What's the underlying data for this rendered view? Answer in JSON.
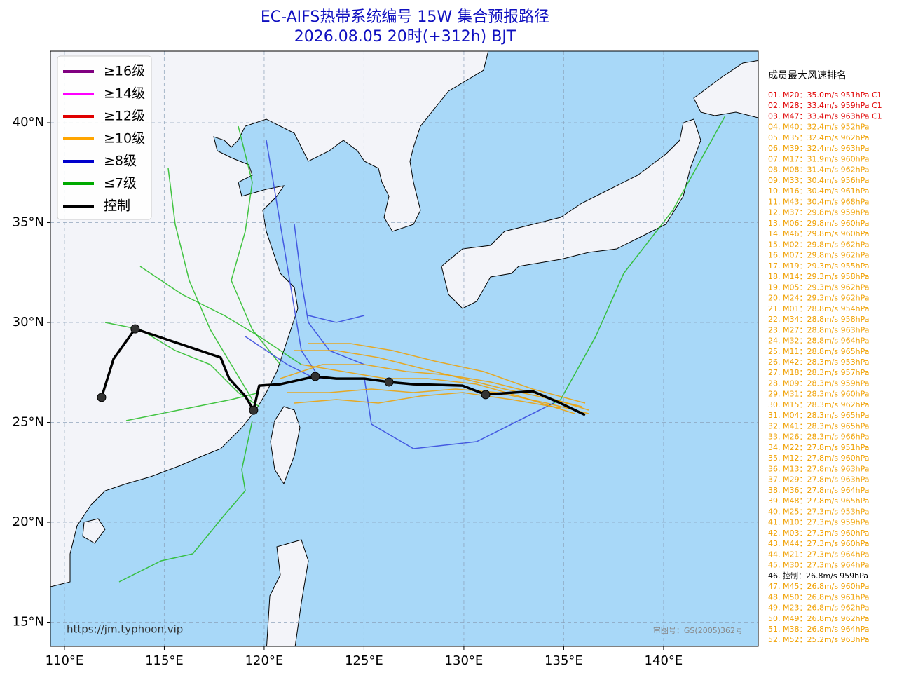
{
  "header": {
    "title": "EC-AIFS热带系统编号 15W 集合预报路径",
    "subtitle": "2026.08.05 20时(+312h) BJT"
  },
  "map": {
    "lon_range": [
      109.3,
      144.74
    ],
    "lat_range": [
      13.79,
      43.58
    ],
    "grid": true,
    "lon_ticks": [
      {
        "value": 110,
        "label": "110°E"
      },
      {
        "value": 115,
        "label": "115°E"
      },
      {
        "value": 120,
        "label": "120°E"
      },
      {
        "value": 125,
        "label": "125°E"
      },
      {
        "value": 130,
        "label": "130°E"
      },
      {
        "value": 135,
        "label": "135°E"
      },
      {
        "value": 140,
        "label": "140°E"
      }
    ],
    "lat_ticks": [
      {
        "value": 15,
        "label": "15°N"
      },
      {
        "value": 20,
        "label": "20°N"
      },
      {
        "value": 25,
        "label": "25°N"
      },
      {
        "value": 30,
        "label": "30°N"
      },
      {
        "value": 35,
        "label": "35°N"
      },
      {
        "value": 40,
        "label": "40°N"
      }
    ],
    "control_track": {
      "lon": [
        111.86,
        112.46,
        113.54,
        117.82,
        118.25,
        119.05,
        119.47,
        119.75,
        120.81,
        122.56,
        123.61,
        125.02,
        126.25,
        127.47,
        129.93,
        131.09,
        133.44,
        134.84,
        136.07
      ],
      "lat": [
        26.25,
        28.18,
        29.68,
        28.25,
        27.19,
        26.32,
        25.61,
        26.84,
        26.91,
        27.3,
        27.19,
        27.19,
        27.02,
        26.91,
        26.84,
        26.39,
        26.56,
        25.96,
        25.37
      ],
      "color": "#000000"
    },
    "source": "https://jm.typhoon.vip",
    "approval": "审图号：GS(2005)362号"
  },
  "legend": [
    {
      "label": "≥16级",
      "color": "#800080"
    },
    {
      "label": "≥14级",
      "color": "#ff00ff"
    },
    {
      "label": "≥12级",
      "color": "#e00000"
    },
    {
      "label": "≥10级",
      "color": "#ffa500"
    },
    {
      "label": "≥8级",
      "color": "#0000cc"
    },
    {
      "label": "≤7级",
      "color": "#00aa00"
    },
    {
      "label": "控制",
      "color": "#000000"
    }
  ],
  "ranking": {
    "title": "成员最大风速排名",
    "items": [
      {
        "text": "01. M20：35.0m/s 951hPa C1",
        "color": "#e00000"
      },
      {
        "text": "02. M28：33.4m/s 959hPa C1",
        "color": "#e00000"
      },
      {
        "text": "03. M47：33.4m/s 963hPa C1",
        "color": "#e00000"
      },
      {
        "text": "04. M40：32.4m/s 952hPa",
        "color": "#f0a000"
      },
      {
        "text": "05. M35：32.4m/s 962hPa",
        "color": "#f0a000"
      },
      {
        "text": "06. M39：32.4m/s 963hPa",
        "color": "#f0a000"
      },
      {
        "text": "07. M17：31.9m/s 960hPa",
        "color": "#f0a000"
      },
      {
        "text": "08. M08：31.4m/s 962hPa",
        "color": "#f0a000"
      },
      {
        "text": "09. M33：30.4m/s 956hPa",
        "color": "#f0a000"
      },
      {
        "text": "10. M16：30.4m/s 961hPa",
        "color": "#f0a000"
      },
      {
        "text": "11. M43：30.4m/s 968hPa",
        "color": "#f0a000"
      },
      {
        "text": "12. M37：29.8m/s 959hPa",
        "color": "#f0a000"
      },
      {
        "text": "13. M06：29.8m/s 960hPa",
        "color": "#f0a000"
      },
      {
        "text": "14. M46：29.8m/s 960hPa",
        "color": "#f0a000"
      },
      {
        "text": "15. M02：29.8m/s 962hPa",
        "color": "#f0a000"
      },
      {
        "text": "16. M07：29.8m/s 962hPa",
        "color": "#f0a000"
      },
      {
        "text": "17. M19：29.3m/s 955hPa",
        "color": "#f0a000"
      },
      {
        "text": "18. M14：29.3m/s 958hPa",
        "color": "#f0a000"
      },
      {
        "text": "19. M05：29.3m/s 962hPa",
        "color": "#f0a000"
      },
      {
        "text": "20. M24：29.3m/s 962hPa",
        "color": "#f0a000"
      },
      {
        "text": "21. M01：28.8m/s 954hPa",
        "color": "#f0a000"
      },
      {
        "text": "22. M34：28.8m/s 958hPa",
        "color": "#f0a000"
      },
      {
        "text": "23. M27：28.8m/s 963hPa",
        "color": "#f0a000"
      },
      {
        "text": "24. M32：28.8m/s 964hPa",
        "color": "#f0a000"
      },
      {
        "text": "25. M11：28.8m/s 965hPa",
        "color": "#f0a000"
      },
      {
        "text": "26. M42：28.3m/s 953hPa",
        "color": "#f0a000"
      },
      {
        "text": "27. M18：28.3m/s 957hPa",
        "color": "#f0a000"
      },
      {
        "text": "28. M09：28.3m/s 959hPa",
        "color": "#f0a000"
      },
      {
        "text": "29. M31：28.3m/s 960hPa",
        "color": "#f0a000"
      },
      {
        "text": "30. M15：28.3m/s 962hPa",
        "color": "#f0a000"
      },
      {
        "text": "31. M04：28.3m/s 965hPa",
        "color": "#f0a000"
      },
      {
        "text": "32. M41：28.3m/s 965hPa",
        "color": "#f0a000"
      },
      {
        "text": "33. M26：28.3m/s 966hPa",
        "color": "#f0a000"
      },
      {
        "text": "34. M22：27.8m/s 951hPa",
        "color": "#f0a000"
      },
      {
        "text": "35. M12：27.8m/s 960hPa",
        "color": "#f0a000"
      },
      {
        "text": "36. M13：27.8m/s 963hPa",
        "color": "#f0a000"
      },
      {
        "text": "37. M29：27.8m/s 963hPa",
        "color": "#f0a000"
      },
      {
        "text": "38. M36：27.8m/s 964hPa",
        "color": "#f0a000"
      },
      {
        "text": "39. M48：27.8m/s 965hPa",
        "color": "#f0a000"
      },
      {
        "text": "40. M25：27.3m/s 953hPa",
        "color": "#f0a000"
      },
      {
        "text": "41. M10：27.3m/s 959hPa",
        "color": "#f0a000"
      },
      {
        "text": "42. M03：27.3m/s 960hPa",
        "color": "#f0a000"
      },
      {
        "text": "43. M44：27.3m/s 960hPa",
        "color": "#f0a000"
      },
      {
        "text": "44. M21：27.3m/s 964hPa",
        "color": "#f0a000"
      },
      {
        "text": "45. M30：27.3m/s 964hPa",
        "color": "#f0a000"
      },
      {
        "text": "46. 控制：26.8m/s 959hPa",
        "color": "#000000"
      },
      {
        "text": "47. M45：26.8m/s 960hPa",
        "color": "#f0a000"
      },
      {
        "text": "48. M50：26.8m/s 961hPa",
        "color": "#f0a000"
      },
      {
        "text": "49. M23：26.8m/s 962hPa",
        "color": "#f0a000"
      },
      {
        "text": "50. M49：26.8m/s 962hPa",
        "color": "#f0a000"
      },
      {
        "text": "51. M38：26.8m/s 964hPa",
        "color": "#f0a000"
      },
      {
        "text": "52. M52：25.2m/s 963hPa",
        "color": "#f0a000"
      }
    ]
  }
}
